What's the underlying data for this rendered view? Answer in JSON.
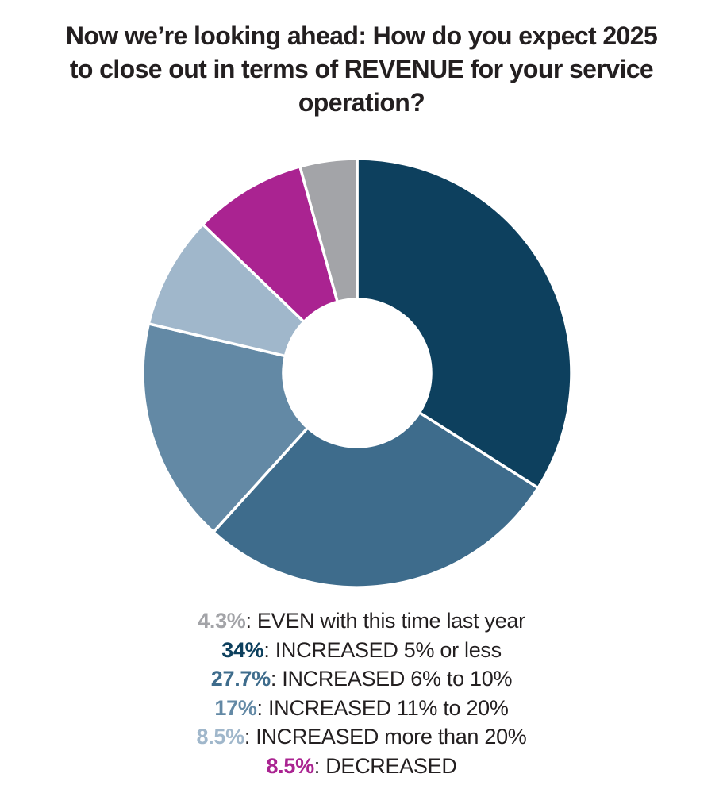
{
  "title": {
    "lines": [
      "Now we’re looking ahead: How do you expect 2025",
      "to close out in terms of REVENUE for your service",
      "operation?"
    ],
    "color": "#231f20"
  },
  "chart_data": {
    "type": "pie",
    "subtype": "donut",
    "title": "Now we’re looking ahead: How do you expect 2025 to close out in terms of REVENUE for your service operation?",
    "unit": "percent",
    "direction": "clockwise",
    "start_angle_from_top_deg": 0,
    "separator_color": "#ffffff",
    "slices": [
      {
        "label": "INCREASED 5% or less",
        "value": 34,
        "color": "#0d405e"
      },
      {
        "label": "INCREASED 6% to 10%",
        "value": 27.7,
        "color": "#3e6c8c"
      },
      {
        "label": "INCREASED 11% to 20%",
        "value": 17,
        "color": "#6389a5"
      },
      {
        "label": "INCREASED more than 20%",
        "value": 8.5,
        "color": "#a0b7cb"
      },
      {
        "label": "DECREASED",
        "value": 8.5,
        "color": "#aa2391"
      },
      {
        "label": "EVEN with this time last year",
        "value": 4.3,
        "color": "#a3a4a8"
      }
    ]
  },
  "legend": {
    "separator": ": ",
    "items": [
      {
        "pct": "4.3%",
        "label": "EVEN with this time last year",
        "color": "#a3a4a8"
      },
      {
        "pct": "34%",
        "label": "INCREASED 5% or less",
        "color": "#0d405e"
      },
      {
        "pct": "27.7%",
        "label": "INCREASED 6% to 10%",
        "color": "#3e6c8c"
      },
      {
        "pct": "17%",
        "label": "INCREASED 11% to 20%",
        "color": "#6389a5"
      },
      {
        "pct": "8.5%",
        "label": "INCREASED more than 20%",
        "color": "#a0b7cb"
      },
      {
        "pct": "8.5%",
        "label": "DECREASED",
        "color": "#aa2391"
      }
    ]
  }
}
